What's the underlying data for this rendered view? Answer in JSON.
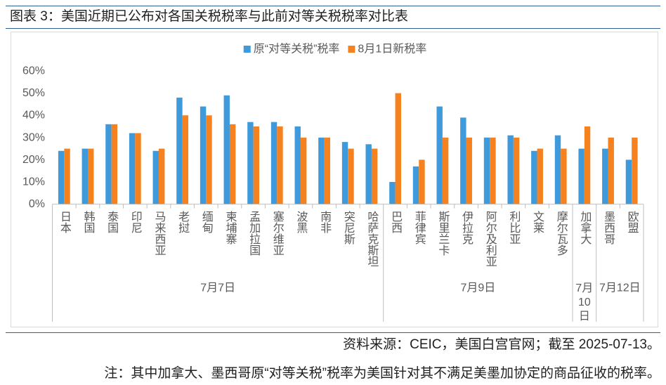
{
  "figure": {
    "caption": "图表 3：美国近期已公布对各国关税税率与此前对等关税税率对比表",
    "source": "资料来源：CEIC，美国白宫官网；截至 2025-07-13。",
    "note": "注：其中加拿大、墨西哥原“对等关税”税率为美国针对其不满足美墨加协定的商品征收的税率。",
    "rule_color": "#2F5F8F"
  },
  "chart_data": {
    "type": "bar",
    "legend": "top",
    "grid": false,
    "ylim": [
      0,
      60
    ],
    "yticks": [
      0,
      10,
      20,
      30,
      40,
      50,
      60
    ],
    "ytick_labels": [
      "0%",
      "10%",
      "20%",
      "30%",
      "40%",
      "50%",
      "60%"
    ],
    "groups": [
      {
        "label": "7月7日",
        "categories": [
          "日本",
          "韩国",
          "泰国",
          "印尼",
          "马来西亚",
          "老挝",
          "缅甸",
          "柬埔寨",
          "孟加拉国",
          "塞尔维亚",
          "波黑",
          "南非",
          "突尼斯",
          "哈萨克斯坦"
        ]
      },
      {
        "label": "7月9日",
        "categories": [
          "巴西",
          "菲律宾",
          "斯里兰卡",
          "伊拉克",
          "阿尔及利亚",
          "利比亚",
          "文莱",
          "摩尔瓦多"
        ]
      },
      {
        "label": "7月10日",
        "categories": [
          "加拿大"
        ]
      },
      {
        "label": "7月12日",
        "categories": [
          "墨西哥",
          "欧盟"
        ]
      }
    ],
    "series": [
      {
        "name": "原“对等关税”税率",
        "color": "#3E9ADB",
        "values": [
          24,
          25,
          36,
          32,
          24,
          48,
          44,
          49,
          37,
          37,
          35,
          30,
          28,
          27,
          10,
          17,
          44,
          39,
          30,
          31,
          24,
          31,
          25,
          25,
          20
        ]
      },
      {
        "name": "8月1日新税率",
        "color": "#F5821F",
        "values": [
          25,
          25,
          36,
          32,
          25,
          40,
          40,
          36,
          35,
          35,
          30,
          30,
          25,
          25,
          50,
          20,
          30,
          30,
          30,
          30,
          25,
          25,
          35,
          30,
          30
        ]
      }
    ],
    "axis_color": "#BFBFBF",
    "label_color": "#595959",
    "frame_color": "#D9D9D9"
  }
}
